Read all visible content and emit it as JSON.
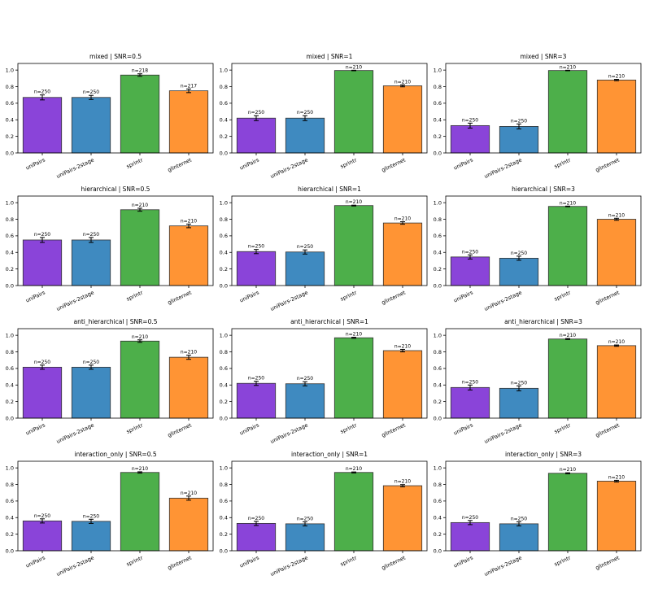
{
  "colors": {
    "uniPairs": "#8a44d9",
    "uniPairs-2stage": "#3f8ac0",
    "sprintr": "#4daf4a",
    "glinternet": "#ff9434"
  },
  "chart_data": [
    {
      "type": "bar",
      "title": "mixed | SNR=0.5",
      "categories": [
        "uniPairs",
        "uniPairs-2stage",
        "sprintr",
        "glinternet"
      ],
      "values": [
        0.67,
        0.67,
        0.94,
        0.75
      ],
      "errors": [
        0.03,
        0.025,
        0.015,
        0.022
      ],
      "n_labels": [
        "n=250",
        "n=250",
        "n=218",
        "n=217"
      ],
      "ylim": [
        0,
        1.08
      ],
      "yticks": [
        "0.0",
        "0.2",
        "0.4",
        "0.6",
        "0.8",
        "1.0"
      ]
    },
    {
      "type": "bar",
      "title": "mixed | SNR=1",
      "categories": [
        "uniPairs",
        "uniPairs-2stage",
        "sprintr",
        "glinternet"
      ],
      "values": [
        0.42,
        0.42,
        0.995,
        0.81
      ],
      "errors": [
        0.03,
        0.03,
        0.003,
        0.012
      ],
      "n_labels": [
        "n=250",
        "n=250",
        "n=210",
        "n=210"
      ],
      "ylim": [
        0,
        1.08
      ],
      "yticks": [
        "0.0",
        "0.2",
        "0.4",
        "0.6",
        "0.8",
        "1.0"
      ]
    },
    {
      "type": "bar",
      "title": "mixed | SNR=3",
      "categories": [
        "uniPairs",
        "uniPairs-2stage",
        "sprintr",
        "glinternet"
      ],
      "values": [
        0.33,
        0.32,
        0.995,
        0.88
      ],
      "errors": [
        0.03,
        0.03,
        0.003,
        0.008
      ],
      "n_labels": [
        "n=250",
        "n=250",
        "n=210",
        "n=210"
      ],
      "ylim": [
        0,
        1.08
      ],
      "yticks": [
        "0.0",
        "0.2",
        "0.4",
        "0.6",
        "0.8",
        "1.0"
      ]
    },
    {
      "type": "bar",
      "title": "hierarchical | SNR=0.5",
      "categories": [
        "uniPairs",
        "uniPairs-2stage",
        "sprintr",
        "glinternet"
      ],
      "values": [
        0.55,
        0.55,
        0.915,
        0.72
      ],
      "errors": [
        0.03,
        0.03,
        0.018,
        0.022
      ],
      "n_labels": [
        "n=250",
        "n=250",
        "n=210",
        "n=210"
      ],
      "ylim": [
        0,
        1.08
      ],
      "yticks": [
        "0.0",
        "0.2",
        "0.4",
        "0.6",
        "0.8",
        "1.0"
      ]
    },
    {
      "type": "bar",
      "title": "hierarchical | SNR=1",
      "categories": [
        "uniPairs",
        "uniPairs-2stage",
        "sprintr",
        "glinternet"
      ],
      "values": [
        0.41,
        0.405,
        0.965,
        0.755
      ],
      "errors": [
        0.025,
        0.025,
        0.005,
        0.015
      ],
      "n_labels": [
        "n=250",
        "n=250",
        "n=210",
        "n=210"
      ],
      "ylim": [
        0,
        1.08
      ],
      "yticks": [
        "0.0",
        "0.2",
        "0.4",
        "0.6",
        "0.8",
        "1.0"
      ]
    },
    {
      "type": "bar",
      "title": "hierarchical | SNR=3",
      "categories": [
        "uniPairs",
        "uniPairs-2stage",
        "sprintr",
        "glinternet"
      ],
      "values": [
        0.345,
        0.33,
        0.955,
        0.8
      ],
      "errors": [
        0.025,
        0.025,
        0.004,
        0.012
      ],
      "n_labels": [
        "n=250",
        "n=250",
        "n=210",
        "n=210"
      ],
      "ylim": [
        0,
        1.08
      ],
      "yticks": [
        "0.0",
        "0.2",
        "0.4",
        "0.6",
        "0.8",
        "1.0"
      ]
    },
    {
      "type": "bar",
      "title": "anti_hierarchical | SNR=0.5",
      "categories": [
        "uniPairs",
        "uniPairs-2stage",
        "sprintr",
        "glinternet"
      ],
      "values": [
        0.615,
        0.615,
        0.93,
        0.735
      ],
      "errors": [
        0.025,
        0.025,
        0.015,
        0.025
      ],
      "n_labels": [
        "n=250",
        "n=250",
        "n=210",
        "n=210"
      ],
      "ylim": [
        0,
        1.08
      ],
      "yticks": [
        "0.0",
        "0.2",
        "0.4",
        "0.6",
        "0.8",
        "1.0"
      ]
    },
    {
      "type": "bar",
      "title": "anti_hierarchical | SNR=1",
      "categories": [
        "uniPairs",
        "uniPairs-2stage",
        "sprintr",
        "glinternet"
      ],
      "values": [
        0.42,
        0.415,
        0.97,
        0.815
      ],
      "errors": [
        0.025,
        0.025,
        0.006,
        0.015
      ],
      "n_labels": [
        "n=250",
        "n=250",
        "n=210",
        "n=210"
      ],
      "ylim": [
        0,
        1.08
      ],
      "yticks": [
        "0.0",
        "0.2",
        "0.4",
        "0.6",
        "0.8",
        "1.0"
      ]
    },
    {
      "type": "bar",
      "title": "anti_hierarchical | SNR=3",
      "categories": [
        "uniPairs",
        "uniPairs-2stage",
        "sprintr",
        "glinternet"
      ],
      "values": [
        0.37,
        0.36,
        0.955,
        0.875
      ],
      "errors": [
        0.03,
        0.03,
        0.006,
        0.008
      ],
      "n_labels": [
        "n=250",
        "n=250",
        "n=210",
        "n=210"
      ],
      "ylim": [
        0,
        1.08
      ],
      "yticks": [
        "0.0",
        "0.2",
        "0.4",
        "0.6",
        "0.8",
        "1.0"
      ]
    },
    {
      "type": "bar",
      "title": "interaction_only | SNR=0.5",
      "categories": [
        "uniPairs",
        "uniPairs-2stage",
        "sprintr",
        "glinternet"
      ],
      "values": [
        0.36,
        0.355,
        0.945,
        0.635
      ],
      "errors": [
        0.025,
        0.025,
        0.008,
        0.025
      ],
      "n_labels": [
        "n=250",
        "n=250",
        "n=210",
        "n=210"
      ],
      "ylim": [
        0,
        1.08
      ],
      "yticks": [
        "0.0",
        "0.2",
        "0.4",
        "0.6",
        "0.8",
        "1.0"
      ]
    },
    {
      "type": "bar",
      "title": "interaction_only | SNR=1",
      "categories": [
        "uniPairs",
        "uniPairs-2stage",
        "sprintr",
        "glinternet"
      ],
      "values": [
        0.33,
        0.325,
        0.945,
        0.785
      ],
      "errors": [
        0.025,
        0.025,
        0.006,
        0.013
      ],
      "n_labels": [
        "n=250",
        "n=250",
        "n=210",
        "n=210"
      ],
      "ylim": [
        0,
        1.08
      ],
      "yticks": [
        "0.0",
        "0.2",
        "0.4",
        "0.6",
        "0.8",
        "1.0"
      ]
    },
    {
      "type": "bar",
      "title": "interaction_only | SNR=3",
      "categories": [
        "uniPairs",
        "uniPairs-2stage",
        "sprintr",
        "glinternet"
      ],
      "values": [
        0.34,
        0.325,
        0.935,
        0.84
      ],
      "errors": [
        0.025,
        0.025,
        0.006,
        0.01
      ],
      "n_labels": [
        "n=250",
        "n=250",
        "n=210",
        "n=210"
      ],
      "ylim": [
        0,
        1.08
      ],
      "yticks": [
        "0.0",
        "0.2",
        "0.4",
        "0.6",
        "0.8",
        "1.0"
      ]
    }
  ]
}
